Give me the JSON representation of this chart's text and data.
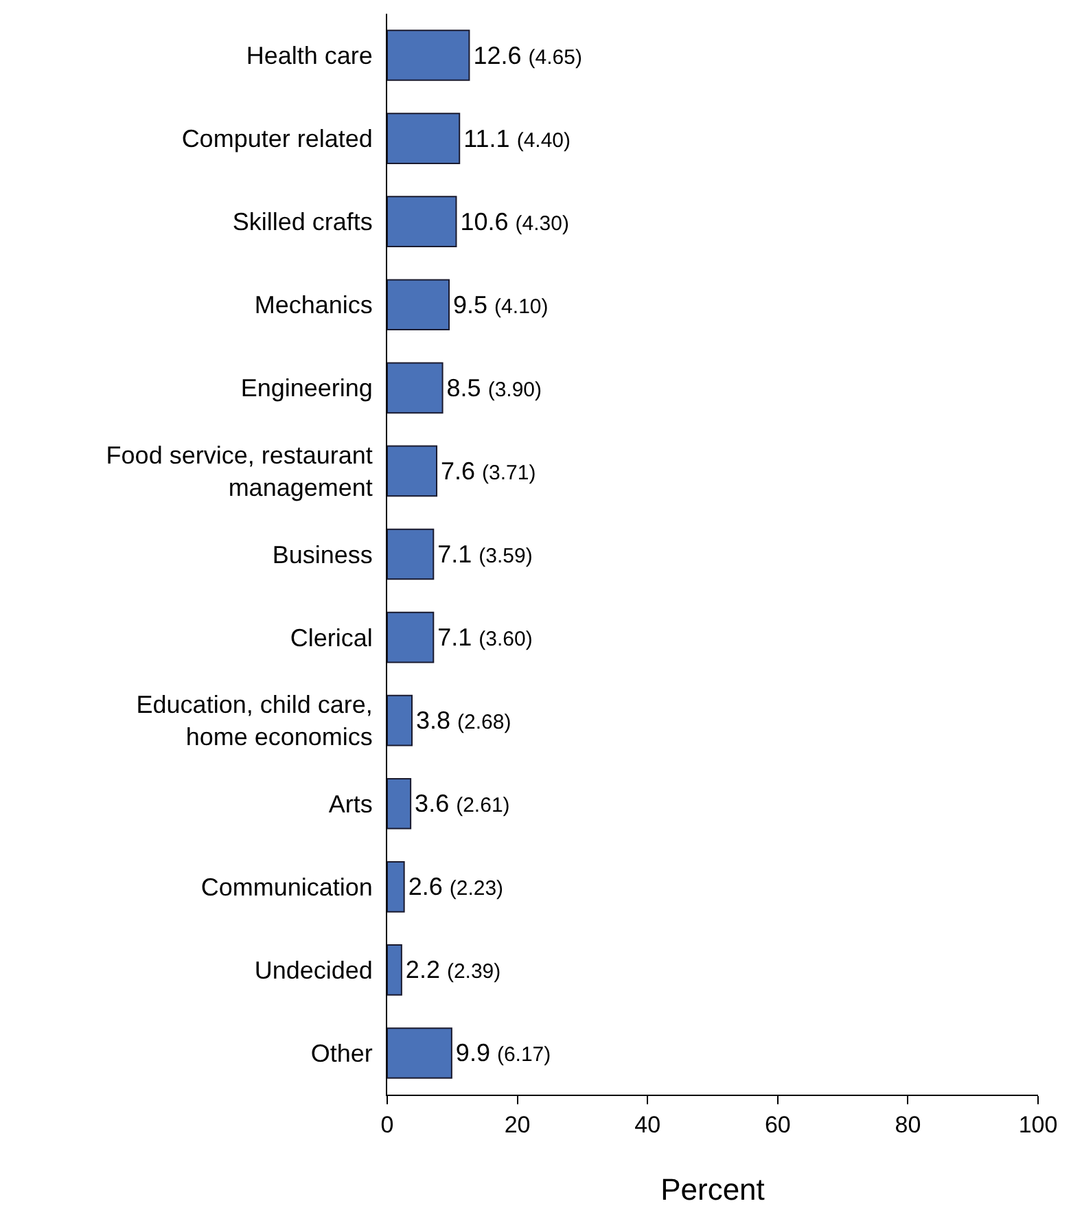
{
  "chart_data": {
    "type": "bar",
    "orientation": "horizontal",
    "xlabel": "Percent",
    "categories": [
      "Health care",
      "Computer related",
      "Skilled crafts",
      "Mechanics",
      "Engineering",
      "Food service, restaurant\nmanagement",
      "Business",
      "Clerical",
      "Education, child care,\nhome economics",
      "Arts",
      "Communication",
      "Undecided",
      "Other"
    ],
    "values": [
      12.6,
      11.1,
      10.6,
      9.5,
      8.5,
      7.6,
      7.1,
      7.1,
      3.8,
      3.6,
      2.6,
      2.2,
      9.9
    ],
    "value_labels": [
      "12.6 (4.65)",
      "11.1 (4.40)",
      "10.6 (4.30)",
      "9.5 (4.10)",
      "8.5 (3.90)",
      "7.6 (3.71)",
      "7.1 (3.59)",
      "7.1 (3.60)",
      "3.8 (2.68)",
      "3.6 (2.61)",
      "2.6 (2.23)",
      "2.2 (2.39)",
      "9.9 (6.17)"
    ],
    "color": "#4a72b8",
    "xlim": [
      0,
      100
    ],
    "xticks": [
      0,
      20,
      40,
      60,
      80,
      100
    ]
  }
}
